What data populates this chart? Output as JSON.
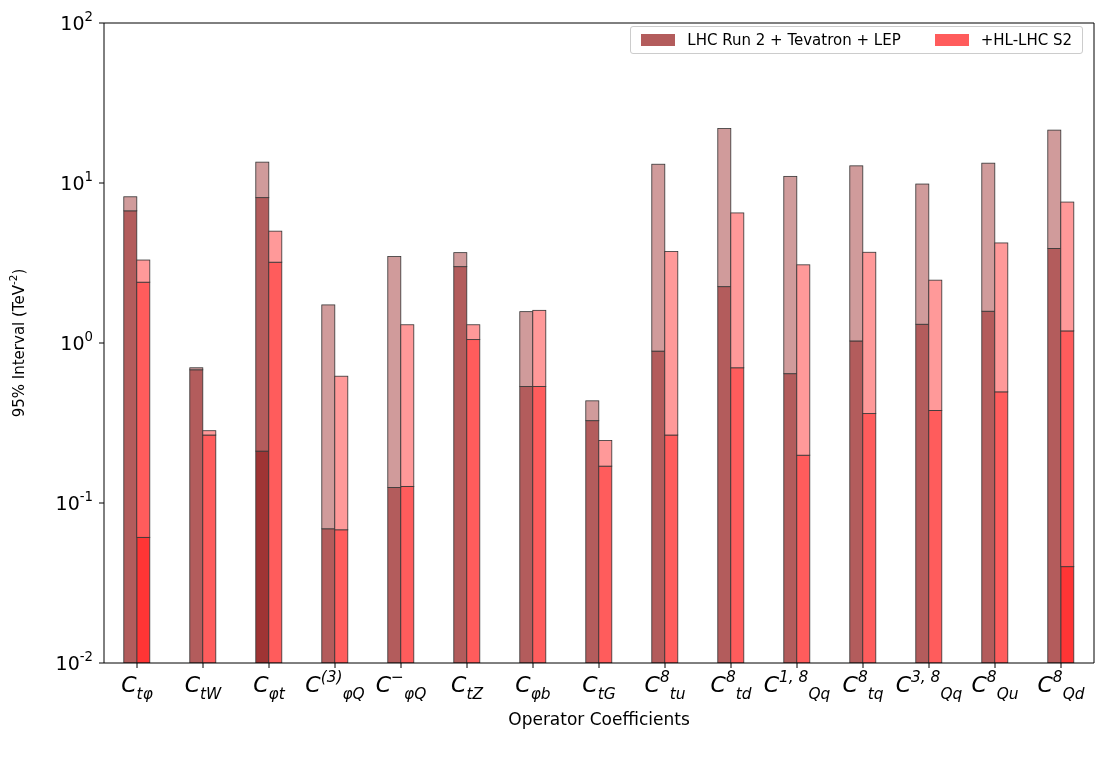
{
  "chart_data": {
    "type": "bar",
    "xlabel": "Operator Coefficients",
    "ylabel": "95% Interval (TeV$^{-2}$)",
    "categories": [
      "C$_{tφ}$",
      "C$_{tW}$",
      "C$_{φt}$",
      "C$^{(3)}$$_{φQ}$",
      "C$^{−}$$_{φQ}$",
      "C$_{tZ}$",
      "C$_{φb}$",
      "C$_{tG}$",
      "C$^{8}$$_{tu}$",
      "C$^{8}$$_{td}$",
      "C$^{1, 8}$$_{Qq}$",
      "C$^{8}$$_{tq}$",
      "C$^{3, 8}$$_{Qq}$",
      "C$^{8}$$_{Qu}$",
      "C$^{8}$$_{Qd}$"
    ],
    "series": [
      {
        "color": "#9f3434",
        "values": [
          null,
          null,
          0.211,
          null,
          null,
          null,
          null,
          null,
          null,
          null,
          null,
          null,
          null,
          null,
          null
        ]
      },
      {
        "color": "#ff3535",
        "values": [
          0.061,
          null,
          null,
          null,
          null,
          null,
          null,
          null,
          null,
          null,
          null,
          null,
          null,
          null,
          0.04
        ]
      },
      {
        "name": "LHC Run 2 + Tevatron + LEP",
        "color": "#b35c5c",
        "values": [
          6.7,
          0.68,
          7.889,
          0.069,
          0.125,
          3.0,
          0.535,
          0.327,
          0.89,
          2.25,
          0.643,
          1.03,
          1.31,
          1.58,
          3.9
        ],
        "base": [
          null,
          null,
          0.211,
          null,
          null,
          null,
          null,
          null,
          null,
          null,
          null,
          null,
          null,
          null,
          null
        ]
      },
      {
        "name": "+HL-LHC S2",
        "color": "#ff5c5c",
        "values": [
          2.339,
          0.266,
          3.2,
          0.068,
          0.127,
          1.05,
          0.535,
          0.17,
          0.266,
          0.7,
          0.199,
          0.362,
          0.379,
          0.495,
          1.15
        ],
        "base": [
          0.061,
          null,
          null,
          null,
          null,
          null,
          null,
          null,
          null,
          null,
          null,
          null,
          null,
          null,
          0.04
        ]
      },
      {
        "color": "#d09b9b",
        "values": [
          1.5,
          0.02,
          5.4,
          1.661,
          3.345,
          0.67,
          1.035,
          0.108,
          12.21,
          19.65,
          10.357,
          11.77,
          8.54,
          11.72,
          17.5
        ],
        "base": [
          6.7,
          0.68,
          8.1,
          0.069,
          0.125,
          3.0,
          0.535,
          0.327,
          0.89,
          2.25,
          0.643,
          1.03,
          1.31,
          1.58,
          3.9
        ]
      },
      {
        "color": "#ff9999",
        "values": [
          0.9,
          0.017,
          1.8,
          0.552,
          1.173,
          0.25,
          1.065,
          0.076,
          3.464,
          5.8,
          2.881,
          3.328,
          2.091,
          3.725,
          6.41
        ],
        "base": [
          2.4,
          0.266,
          3.2,
          0.068,
          0.127,
          1.05,
          0.535,
          0.17,
          0.266,
          0.7,
          0.199,
          0.362,
          0.379,
          0.495,
          1.19
        ]
      }
    ],
    "log": true,
    "ylim": [
      0.01,
      100
    ],
    "yticks": [
      {
        "value": 0.01,
        "label": "10$^{-2}$"
      },
      {
        "value": 0.1,
        "label": "10$^{-1}$"
      },
      {
        "value": 1,
        "label": "10$^{0}$"
      },
      {
        "value": 10,
        "label": "10$^{1}$"
      },
      {
        "value": 100,
        "label": "10$^{2}$"
      }
    ],
    "legend": "top right"
  }
}
